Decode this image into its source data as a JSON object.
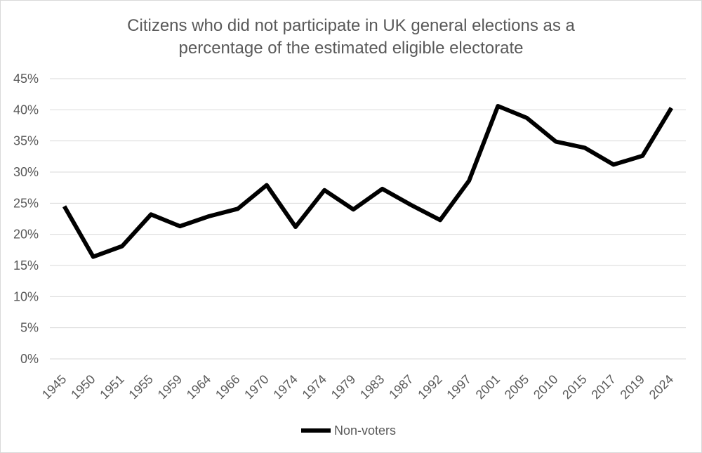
{
  "chart_data": {
    "type": "line",
    "title_lines": [
      "Citizens who did not participate in UK general elections as a",
      "percentage of the estimated eligible electorate"
    ],
    "xlabel": "",
    "ylabel": "",
    "categories": [
      "1945",
      "1950",
      "1951",
      "1955",
      "1959",
      "1964",
      "1966",
      "1970",
      "1974",
      "1974",
      "1979",
      "1983",
      "1987",
      "1992",
      "1997",
      "2001",
      "2005",
      "2010",
      "2015",
      "2017",
      "2019",
      "2024"
    ],
    "series": [
      {
        "name": "Non-voters",
        "color": "#000000",
        "values": [
          24.5,
          16.4,
          18.1,
          23.2,
          21.3,
          22.9,
          24.1,
          27.9,
          21.2,
          27.1,
          24.0,
          27.3,
          24.7,
          22.3,
          28.6,
          40.6,
          38.7,
          34.9,
          33.9,
          31.2,
          32.6,
          40.3
        ]
      }
    ],
    "ylim": [
      0,
      45
    ],
    "y_ticks": [
      {
        "value": 0,
        "label": "0%"
      },
      {
        "value": 5,
        "label": "5%"
      },
      {
        "value": 10,
        "label": "10%"
      },
      {
        "value": 15,
        "label": "15%"
      },
      {
        "value": 20,
        "label": "20%"
      },
      {
        "value": 25,
        "label": "25%"
      },
      {
        "value": 30,
        "label": "30%"
      },
      {
        "value": 35,
        "label": "35%"
      },
      {
        "value": 40,
        "label": "40%"
      },
      {
        "value": 45,
        "label": "45%"
      }
    ],
    "grid": true,
    "legend_position": "bottom",
    "colors": {
      "gridline": "#d9d9d9",
      "text": "#595959",
      "line": "#000000"
    }
  }
}
